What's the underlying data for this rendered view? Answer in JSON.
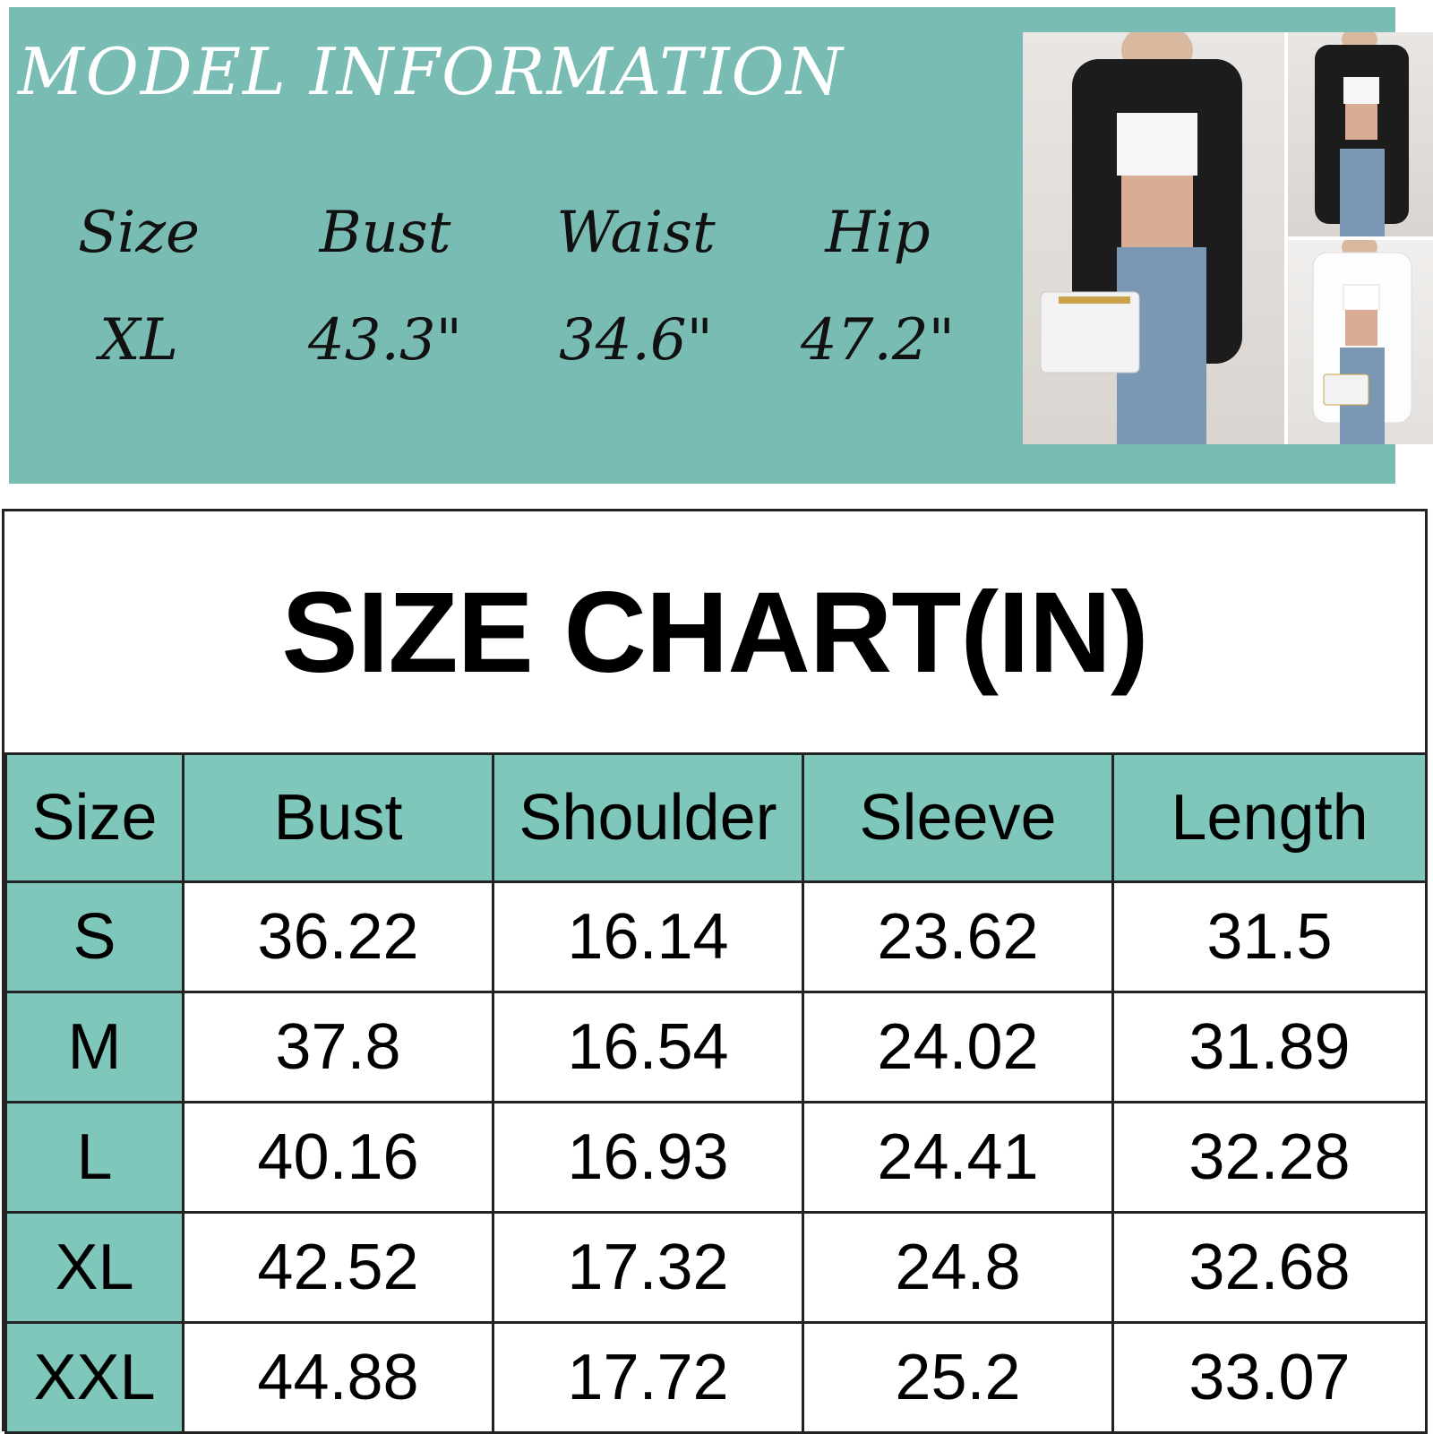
{
  "model_info": {
    "title": "MODEL INFORMATION",
    "headers": [
      "Size",
      "Bust",
      "Waist",
      "Hip"
    ],
    "values": [
      "XL",
      "43.3\"",
      "34.6\"",
      "47.2\""
    ]
  },
  "size_chart": {
    "title": "SIZE CHART(IN)",
    "columns": [
      "Size",
      "Bust",
      "Shoulder",
      "Sleeve",
      "Length"
    ],
    "rows": [
      [
        "S",
        "36.22",
        "16.14",
        "23.62",
        "31.5"
      ],
      [
        "M",
        "37.8",
        "16.54",
        "24.02",
        "31.89"
      ],
      [
        "L",
        "40.16",
        "16.93",
        "24.41",
        "32.28"
      ],
      [
        "XL",
        "42.52",
        "17.32",
        "24.8",
        "32.68"
      ],
      [
        "XXL",
        "44.88",
        "17.72",
        "25.2",
        "33.07"
      ]
    ]
  },
  "colors": {
    "panel_teal": "#79bcb3",
    "header_teal": "#7fc6bb",
    "title_white": "#ffffff"
  }
}
